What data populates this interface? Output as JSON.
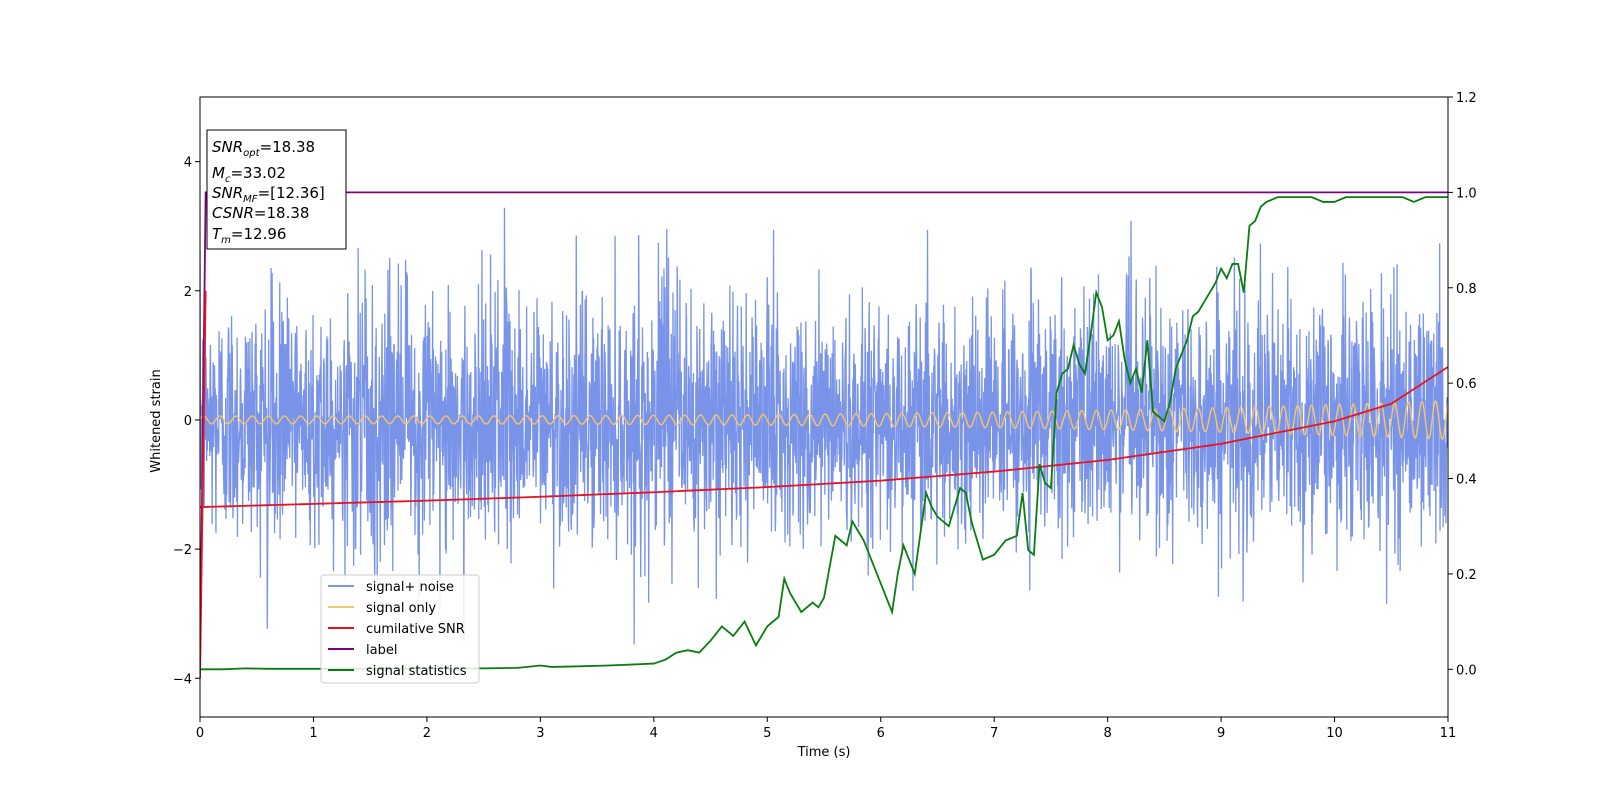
{
  "chart_data": {
    "type": "line",
    "xlabel": "Time (s)",
    "ylabel": "Whitened strain",
    "xlim": [
      0,
      11
    ],
    "ylim": [
      -4.6,
      5.0
    ],
    "y2lim": [
      -0.1,
      1.2
    ],
    "xticks": [
      "0",
      "1",
      "2",
      "3",
      "4",
      "5",
      "6",
      "7",
      "8",
      "9",
      "10",
      "11"
    ],
    "yticks": [
      "−4",
      "−2",
      "0",
      "2",
      "4"
    ],
    "y2ticks": [
      "0.0",
      "0.2",
      "0.4",
      "0.6",
      "0.8",
      "1.0",
      "1.2"
    ],
    "legend_position": "lower-left",
    "colors": {
      "noise": "#7893e8",
      "signal": "#f5c46e",
      "csnr": "#e8141e",
      "label": "#800080",
      "stat": "#0a7d10"
    },
    "annotation": {
      "snr_opt": {
        "base": "SNR",
        "sub": "opt",
        "value": "=18.38"
      },
      "mc": {
        "base": "M",
        "sub": "c",
        "value": "=33.02"
      },
      "snr_mf": {
        "base": "SNR",
        "sub": "MF",
        "value": "=[12.36]"
      },
      "csnr": {
        "base": "CSNR",
        "value": "=18.38"
      },
      "tm": {
        "base": "T",
        "sub": "m",
        "value": "=12.96"
      }
    },
    "series": [
      {
        "name": "signal+ noise",
        "axis": "left",
        "description_values": {
          "std_approx": 0.9,
          "y_range": [
            -3.5,
            3.4
          ]
        }
      },
      {
        "name": "signal only",
        "axis": "left",
        "amplitude_start": 0.06,
        "amplitude_end": 0.3
      },
      {
        "name": "cumilative SNR",
        "axis": "left",
        "x": [
          0,
          1,
          2,
          3,
          4,
          5,
          6,
          7,
          8,
          9,
          10,
          10.5,
          11
        ],
        "y": [
          -1.35,
          -1.3,
          -1.25,
          -1.19,
          -1.12,
          -1.04,
          -0.94,
          -0.8,
          -0.62,
          -0.37,
          -0.02,
          0.25,
          0.82
        ]
      },
      {
        "name": "label",
        "axis": "right",
        "x": [
          0,
          0.05,
          11
        ],
        "y": [
          0.0,
          1.0,
          1.0
        ]
      },
      {
        "name": "signal statistics",
        "axis": "right",
        "x": [
          0,
          0.2,
          0.4,
          0.6,
          1.0,
          1.5,
          2.0,
          2.5,
          2.8,
          3.0,
          3.1,
          3.3,
          3.6,
          3.8,
          4.0,
          4.05,
          4.1,
          4.2,
          4.3,
          4.4,
          4.5,
          4.6,
          4.7,
          4.8,
          4.9,
          5.0,
          5.1,
          5.15,
          5.2,
          5.3,
          5.4,
          5.45,
          5.5,
          5.6,
          5.7,
          5.75,
          5.8,
          5.85,
          5.9,
          6.0,
          6.1,
          6.15,
          6.2,
          6.3,
          6.4,
          6.45,
          6.5,
          6.6,
          6.7,
          6.75,
          6.8,
          6.9,
          7.0,
          7.1,
          7.2,
          7.25,
          7.3,
          7.35,
          7.4,
          7.45,
          7.5,
          7.55,
          7.6,
          7.65,
          7.7,
          7.75,
          7.8,
          7.85,
          7.9,
          7.95,
          8.0,
          8.05,
          8.1,
          8.15,
          8.2,
          8.25,
          8.3,
          8.35,
          8.4,
          8.45,
          8.5,
          8.55,
          8.6,
          8.65,
          8.7,
          8.75,
          8.8,
          8.85,
          8.9,
          8.95,
          9.0,
          9.05,
          9.1,
          9.15,
          9.2,
          9.25,
          9.3,
          9.35,
          9.4,
          9.5,
          9.6,
          9.7,
          9.8,
          9.9,
          10.0,
          10.1,
          10.2,
          10.3,
          10.4,
          10.5,
          10.6,
          10.7,
          10.8,
          10.9,
          11.0
        ],
        "y": [
          0.0,
          0.0,
          0.002,
          0.001,
          0.001,
          0.001,
          0.002,
          0.002,
          0.003,
          0.008,
          0.005,
          0.006,
          0.008,
          0.01,
          0.012,
          0.016,
          0.02,
          0.035,
          0.04,
          0.035,
          0.06,
          0.09,
          0.07,
          0.1,
          0.05,
          0.09,
          0.11,
          0.19,
          0.16,
          0.12,
          0.14,
          0.13,
          0.15,
          0.28,
          0.26,
          0.31,
          0.29,
          0.27,
          0.24,
          0.18,
          0.12,
          0.2,
          0.26,
          0.2,
          0.37,
          0.34,
          0.32,
          0.3,
          0.38,
          0.37,
          0.31,
          0.23,
          0.24,
          0.27,
          0.28,
          0.37,
          0.25,
          0.24,
          0.43,
          0.39,
          0.38,
          0.58,
          0.62,
          0.63,
          0.68,
          0.64,
          0.62,
          0.7,
          0.79,
          0.76,
          0.69,
          0.7,
          0.73,
          0.65,
          0.6,
          0.63,
          0.58,
          0.69,
          0.54,
          0.53,
          0.52,
          0.56,
          0.63,
          0.66,
          0.69,
          0.74,
          0.75,
          0.77,
          0.79,
          0.81,
          0.84,
          0.82,
          0.85,
          0.85,
          0.79,
          0.93,
          0.94,
          0.97,
          0.98,
          0.99,
          0.99,
          0.99,
          0.99,
          0.98,
          0.98,
          0.99,
          0.99,
          0.99,
          0.99,
          0.99,
          0.99,
          0.98,
          0.99,
          0.99,
          0.99
        ]
      }
    ]
  }
}
